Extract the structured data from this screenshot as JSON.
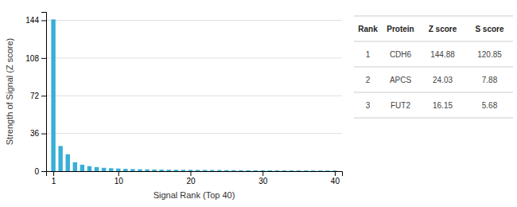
{
  "chart_data": {
    "type": "bar",
    "x": [
      1,
      2,
      3,
      4,
      5,
      6,
      7,
      8,
      9,
      10,
      11,
      12,
      13,
      14,
      15,
      16,
      17,
      18,
      19,
      20,
      21,
      22,
      23,
      24,
      25,
      26,
      27,
      28,
      29,
      30,
      31,
      32,
      33,
      34,
      35,
      36,
      37,
      38,
      39,
      40
    ],
    "values": [
      144.88,
      24.03,
      16.15,
      8.5,
      6.2,
      4.8,
      3.9,
      3.2,
      2.8,
      2.5,
      2.2,
      2.0,
      1.8,
      1.7,
      1.6,
      1.5,
      1.4,
      1.35,
      1.3,
      1.25,
      1.2,
      1.15,
      1.1,
      1.05,
      1.0,
      0.95,
      0.9,
      0.88,
      0.85,
      0.82,
      0.8,
      0.78,
      0.75,
      0.73,
      0.71,
      0.69,
      0.67,
      0.65,
      0.63,
      0.61
    ],
    "color": "#39afd6",
    "xlabel": "Signal Rank (Top 40)",
    "ylabel": "Strength of Signal (Z score)",
    "xlim": [
      0.0,
      41
    ],
    "xticks": [
      1,
      10,
      20,
      30,
      40
    ],
    "ylim": [
      0,
      152
    ],
    "yticks": [
      0,
      36,
      72,
      108,
      144
    ],
    "grid": true,
    "table": {
      "columns": [
        "Rank",
        "Protein",
        "Z score",
        "S score"
      ],
      "rows": [
        [
          "1",
          "CDH6",
          "144.88",
          "120.85"
        ],
        [
          "2",
          "APCS",
          "24.03",
          "7.88"
        ],
        [
          "3",
          "FUT2",
          "16.15",
          "5.68"
        ]
      ]
    }
  }
}
